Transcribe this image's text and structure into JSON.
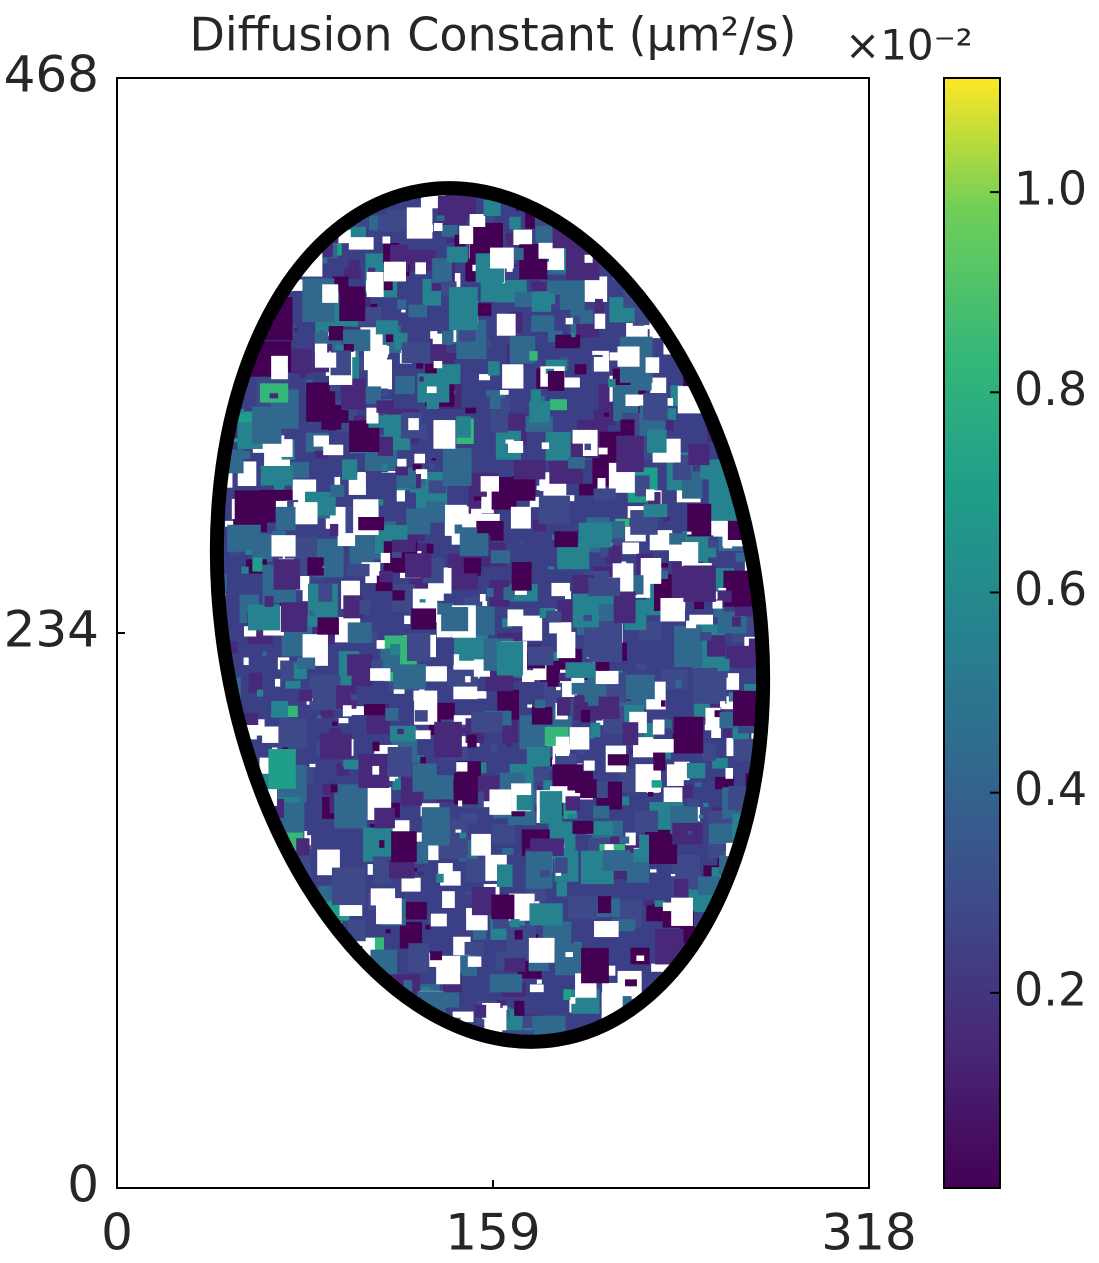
{
  "chart_data": {
    "type": "heatmap",
    "title": "Diffusion Constant (μm²/s)",
    "colorbar_offset": "×10⁻²",
    "colormap": "viridis",
    "xlim": [
      0,
      318
    ],
    "xticks": [
      0,
      159,
      318
    ],
    "ylim": [
      0,
      468
    ],
    "yticks": [
      0,
      234,
      468
    ],
    "clim": [
      0.005,
      1.114
    ],
    "cticks": [
      0.2,
      0.4,
      0.6,
      0.8,
      {
        "value": 1,
        "label": "1.0"
      }
    ]
  }
}
